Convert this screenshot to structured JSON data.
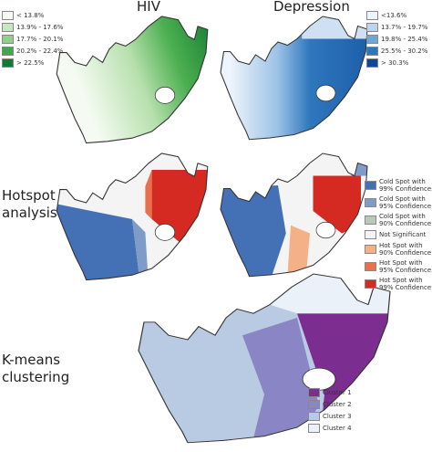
{
  "headers": {
    "hiv": "HIV",
    "depression": "Depression"
  },
  "rows": {
    "hotspot": "Hotspot analysis",
    "kmeans": "K-means clustering"
  },
  "legends": {
    "hiv": [
      {
        "label": "< 13.8%",
        "color": "#f5fbf2"
      },
      {
        "label": "13.9% - 17.6%",
        "color": "#c7e9c0"
      },
      {
        "label": "17.7% - 20.1%",
        "color": "#8fd18a"
      },
      {
        "label": "20.2% - 22.4%",
        "color": "#43a84c"
      },
      {
        "label": "> 22.5%",
        "color": "#137a33"
      }
    ],
    "depression": [
      {
        "label": "<13.6%",
        "color": "#eef4fb"
      },
      {
        "label": "13.7% - 19.7%",
        "color": "#bcd5ee"
      },
      {
        "label": "19.8% - 25.4%",
        "color": "#6fa6d8"
      },
      {
        "label": "25.5% - 30.2%",
        "color": "#2f77bd"
      },
      {
        "label": "> 30.3%",
        "color": "#0c4a96"
      }
    ],
    "hotspot": [
      {
        "label": "Cold Spot with 99% Confidence",
        "color": "#4470b6"
      },
      {
        "label": "Cold Spot with 95% Confidence",
        "color": "#7f9cc9"
      },
      {
        "label": "Cold Spot with 90% Confidence",
        "color": "#b9c8b9"
      },
      {
        "label": "Not Significant",
        "color": "#f4f4f4"
      },
      {
        "label": "Hot Spot with 90% Confidence",
        "color": "#f4b086"
      },
      {
        "label": "Hot Spot with 95% Confidence",
        "color": "#e8704c"
      },
      {
        "label": "Hot Spot with 99% Confidence",
        "color": "#d42a22"
      }
    ],
    "clusters": [
      {
        "label": "Cluster 1",
        "color": "#7b2d90"
      },
      {
        "label": "Cluster 2",
        "color": "#8a86c6"
      },
      {
        "label": "Cluster 3",
        "color": "#b9cbe3"
      },
      {
        "label": "Cluster 4",
        "color": "#eaf1f9"
      }
    ]
  }
}
